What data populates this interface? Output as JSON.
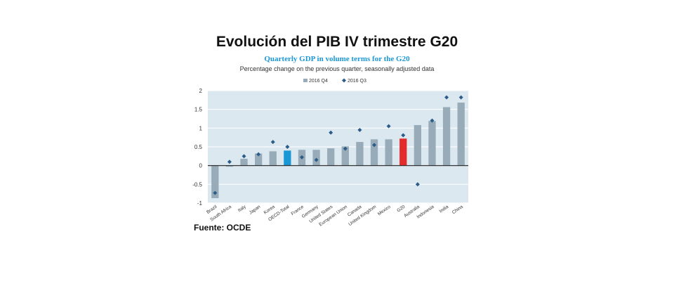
{
  "title": "Evolución del PIB IV trimestre G20",
  "subtitle": "Quarterly GDP in volume terms for the G20",
  "note": "Percentage change on the previous quarter, seasonally adjusted data",
  "source": "Fuente: OCDE",
  "chart_data": {
    "type": "bar",
    "categories": [
      "Brazil",
      "South Africa",
      "Italy",
      "Japan",
      "Korea",
      "OECD-Total",
      "France",
      "Germany",
      "United States",
      "European Union",
      "Canada",
      "United Kingdom",
      "Mexico",
      "G20",
      "Australia",
      "Indonesia",
      "India",
      "China"
    ],
    "series": [
      {
        "name": "2016 Q4",
        "type": "bar",
        "values": [
          -0.87,
          -0.03,
          0.18,
          0.32,
          0.38,
          0.4,
          0.42,
          0.42,
          0.46,
          0.51,
          0.63,
          0.7,
          0.7,
          0.72,
          1.08,
          1.19,
          1.56,
          1.68
        ],
        "color": "#98abb8"
      },
      {
        "name": "2016 Q3",
        "type": "marker",
        "values": [
          -0.73,
          0.1,
          0.25,
          0.3,
          0.63,
          0.5,
          0.22,
          0.15,
          0.88,
          0.45,
          0.95,
          0.55,
          1.05,
          0.81,
          -0.5,
          1.2,
          1.82,
          1.82
        ],
        "color": "#2c5d8a"
      }
    ],
    "highlight": {
      "OECD-Total": "#1a98d5",
      "G20": "#e32b2b"
    },
    "yticks": [
      "2",
      "1.5",
      "1",
      "0.5",
      "0",
      "-0.5",
      "-1"
    ],
    "ylim": [
      -1,
      2
    ],
    "grid": true,
    "legend": "top-center",
    "plot_background": "#dce8f0"
  }
}
